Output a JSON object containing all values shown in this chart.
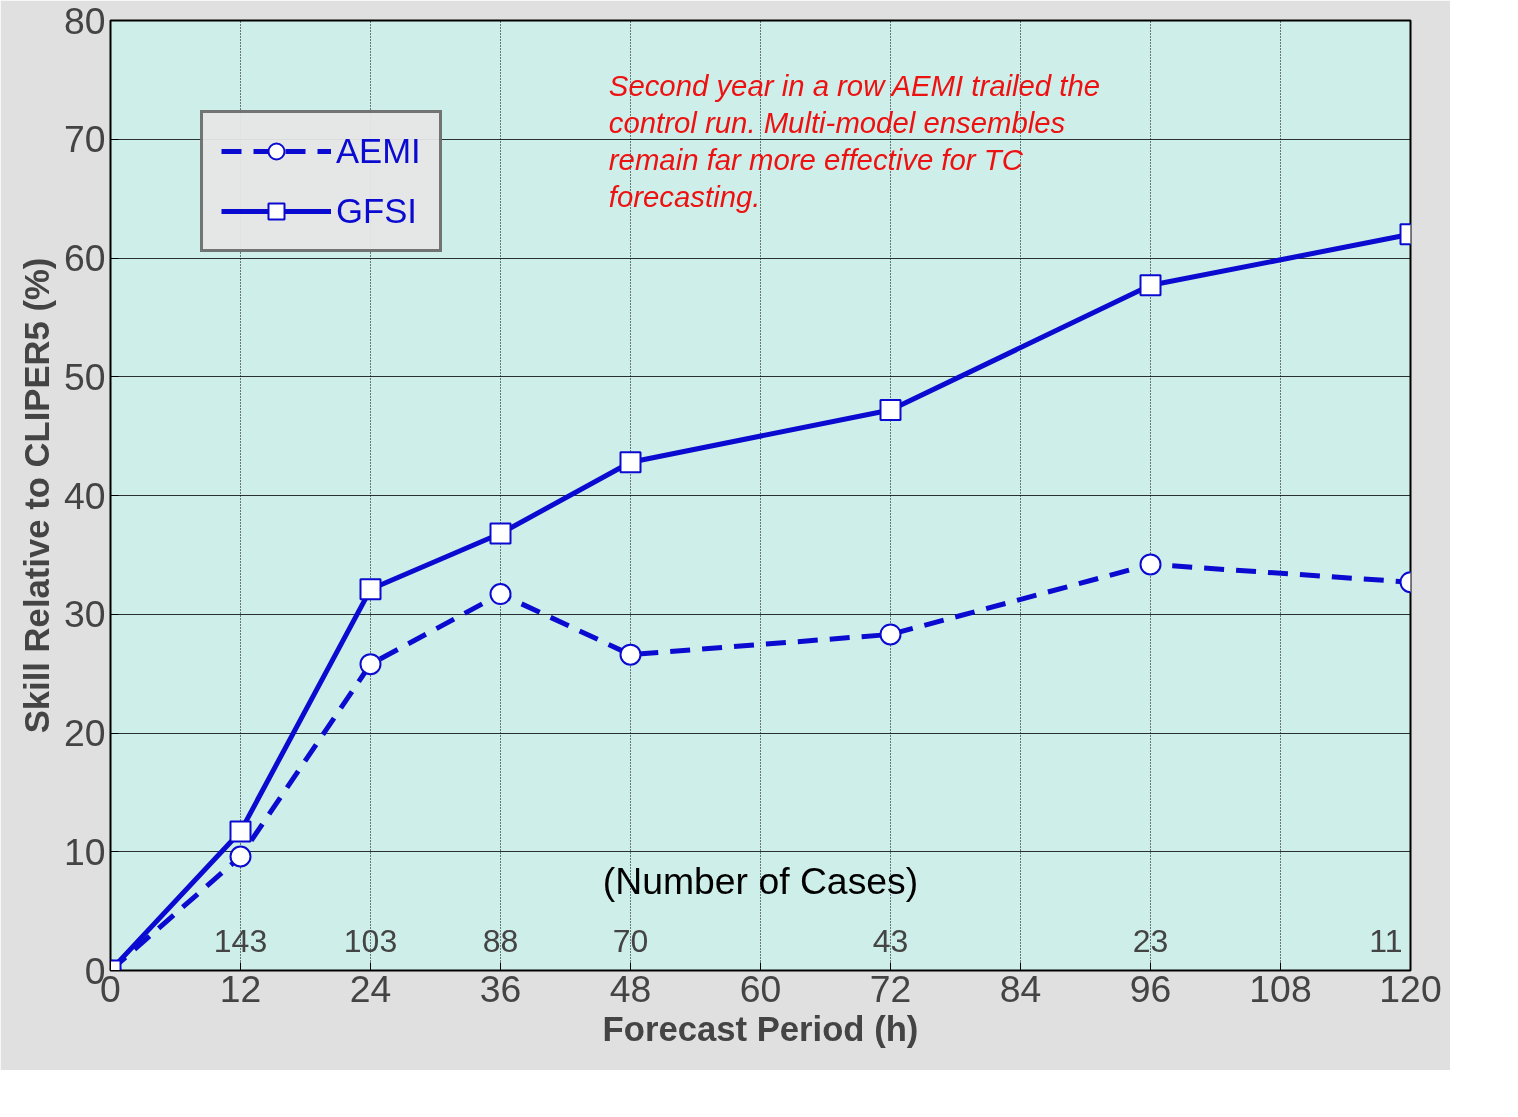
{
  "chart_data": {
    "type": "line",
    "xlabel": "Forecast Period (h)",
    "ylabel": "Skill Relative to CLIPER5 (%)",
    "x": [
      0,
      12,
      24,
      36,
      48,
      72,
      96,
      120
    ],
    "series": [
      {
        "name": "AEMI",
        "color": "#0a0ad0",
        "marker": "circle",
        "line_style": "dashed",
        "values": [
          0,
          9.6,
          25.8,
          31.7,
          26.6,
          28.3,
          34.2,
          32.7
        ]
      },
      {
        "name": "GFSI",
        "color": "#0a0ad0",
        "marker": "square",
        "line_style": "solid",
        "values": [
          0,
          11.7,
          32.1,
          36.8,
          42.8,
          47.2,
          57.7,
          62.0
        ]
      }
    ],
    "xlim": [
      0,
      120
    ],
    "ylim": [
      0,
      80
    ],
    "xticks": [
      0,
      12,
      24,
      36,
      48,
      60,
      72,
      84,
      96,
      108,
      120
    ],
    "yticks": [
      0,
      10,
      20,
      30,
      40,
      50,
      60,
      70,
      80
    ],
    "grid": true,
    "legend": "top left",
    "annotations": [
      "Second year in a row AEMI trailed the control run.  Multi-model ensembles remain far more effective for TC forecasting.",
      "(Number of Cases)",
      "143",
      "103",
      "88",
      "70",
      "43",
      "23",
      "11"
    ]
  }
}
